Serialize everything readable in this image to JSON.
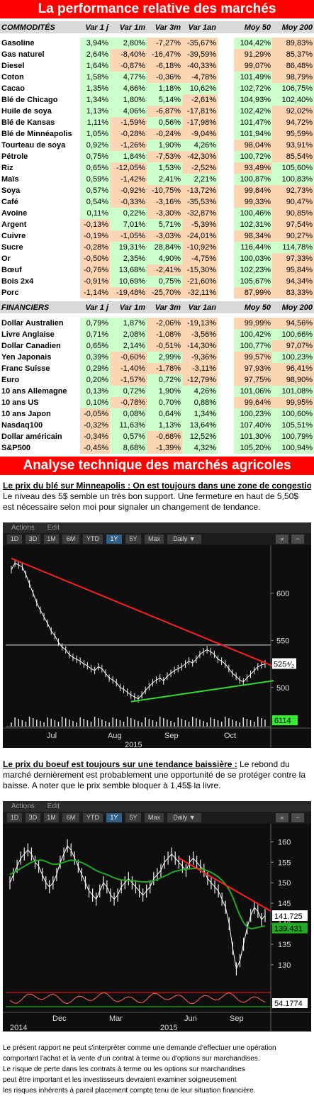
{
  "title": "La performance relative des marchés",
  "commodities": {
    "header": [
      "COMMODITÉS",
      "Var 1 j",
      "Var 1m",
      "Var 3m",
      "Var 1an",
      "Moy 50",
      "Moy 200"
    ],
    "rows": [
      [
        "Gasoline",
        "3,94%",
        "2,80%",
        "-7,27%",
        "-35,67%",
        "104,42%",
        "89,83%"
      ],
      [
        "Gas naturel",
        "2,64%",
        "-8,40%",
        "-16,47%",
        "-39,59%",
        "91,29%",
        "85,37%"
      ],
      [
        "Diesel",
        "1,64%",
        "-0,87%",
        "-6,18%",
        "-40,33%",
        "99,07%",
        "86,48%"
      ],
      [
        "Coton",
        "1,58%",
        "4,77%",
        "-0,36%",
        "-4,78%",
        "101,49%",
        "98,79%"
      ],
      [
        "Cacao",
        "1,35%",
        "4,66%",
        "1,18%",
        "10,62%",
        "102,72%",
        "106,75%"
      ],
      [
        "Blé de Chicago",
        "1,34%",
        "1,80%",
        "5,14%",
        "-2,61%",
        "104,93%",
        "102,40%"
      ],
      [
        "Huile de soya",
        "1,13%",
        "4,06%",
        "-6,87%",
        "-17,81%",
        "102,42%",
        "92,02%"
      ],
      [
        "Blé de Kansas",
        "1,11%",
        "-1,59%",
        "0,56%",
        "-17,98%",
        "101,47%",
        "94,72%"
      ],
      [
        "Blé de Minnéapolis",
        "1,05%",
        "-0,28%",
        "-0,24%",
        "-9,04%",
        "101,94%",
        "95,59%"
      ],
      [
        "Tourteau de soya",
        "0,92%",
        "-1,26%",
        "1,90%",
        "4,26%",
        "98,04%",
        "93,91%"
      ],
      [
        "Pétrole",
        "0,75%",
        "1,84%",
        "-7,53%",
        "-42,30%",
        "100,72%",
        "85,54%"
      ],
      [
        "Riz",
        "0,65%",
        "-12,05%",
        "1,53%",
        "-2,52%",
        "93,49%",
        "105,60%"
      ],
      [
        "Maïs",
        "0,59%",
        "-1,42%",
        "2,41%",
        "2,21%",
        "100,87%",
        "100,83%"
      ],
      [
        "Soya",
        "0,57%",
        "-0,92%",
        "-10,75%",
        "-13,72%",
        "99,84%",
        "92,73%"
      ],
      [
        "Café",
        "0,54%",
        "-0,33%",
        "-3,16%",
        "-35,53%",
        "99,33%",
        "90,47%"
      ],
      [
        "Avoine",
        "0,11%",
        "0,22%",
        "-3,30%",
        "-32,87%",
        "100,46%",
        "90,85%"
      ],
      [
        "Argent",
        "-0,13%",
        "7,01%",
        "5,71%",
        "-5,39%",
        "102,31%",
        "97,54%"
      ],
      [
        "Cuivre",
        "-0,19%",
        "-1,05%",
        "-3,03%",
        "-24,01%",
        "98,34%",
        "90,27%"
      ],
      [
        "Sucre",
        "-0,28%",
        "19,31%",
        "28,84%",
        "-10,92%",
        "116,44%",
        "114,78%"
      ],
      [
        "Or",
        "-0,50%",
        "2,35%",
        "4,90%",
        "-4,75%",
        "100,03%",
        "97,33%"
      ],
      [
        "Bœuf",
        "-0,76%",
        "13,68%",
        "-2,41%",
        "-15,30%",
        "102,23%",
        "95,84%"
      ],
      [
        "Bois 2x4",
        "-0,91%",
        "10,69%",
        "0,75%",
        "-21,60%",
        "105,67%",
        "94,34%"
      ],
      [
        "Porc",
        "-1,14%",
        "-19,48%",
        "-25,70%",
        "-32,11%",
        "87,99%",
        "83,33%"
      ]
    ]
  },
  "financials": {
    "header": [
      "FINANCIERS",
      "Var 1 j",
      "Var 1m",
      "Var 3m",
      "Var 1an",
      "Moy 50",
      "Moy 200"
    ],
    "rows": [
      [
        "Dollar Australien",
        "0,79%",
        "1,87%",
        "-2,06%",
        "-19,13%",
        "99,99%",
        "94,56%"
      ],
      [
        "Livre Anglaise",
        "0,71%",
        "2,08%",
        "-1,08%",
        "-3,56%",
        "100,42%",
        "100,66%"
      ],
      [
        "Dollar Canadien",
        "0,65%",
        "2,14%",
        "-0,51%",
        "-14,30%",
        "100,77%",
        "97,07%"
      ],
      [
        "Yen Japonais",
        "0,39%",
        "-0,60%",
        "2,99%",
        "-9,36%",
        "99,57%",
        "100,23%"
      ],
      [
        "Franc Suisse",
        "0,29%",
        "-1,40%",
        "-1,78%",
        "-3,11%",
        "97,93%",
        "96,41%"
      ],
      [
        "Euro",
        "0,20%",
        "-1,57%",
        "0,72%",
        "-12,79%",
        "97,75%",
        "98,90%"
      ],
      [
        "10 ans Allemagne",
        "0,13%",
        "0,72%",
        "1,90%",
        "4,26%",
        "101,06%",
        "101,08%"
      ],
      [
        "10 ans US",
        "0,10%",
        "-0,78%",
        "0,70%",
        "0,88%",
        "99,64%",
        "99,95%"
      ],
      [
        "10 ans Japon",
        "-0,05%",
        "0,08%",
        "0,64%",
        "1,34%",
        "100,23%",
        "100,60%"
      ],
      [
        "Nasdaq100",
        "-0,32%",
        "11,63%",
        "1,13%",
        "13,64%",
        "107,40%",
        "105,51%"
      ],
      [
        "Dollar américain",
        "-0,34%",
        "0,57%",
        "-0,68%",
        "12,52%",
        "101,30%",
        "100,79%"
      ],
      [
        "S&P500",
        "-0,45%",
        "8,68%",
        "-1,39%",
        "4,32%",
        "105,20%",
        "100,94%"
      ]
    ]
  },
  "analysis_title": "Analyse technique des marchés agricoles",
  "wheat": {
    "title": "Le prix du blé sur Minneapolis : On est toujours dans une zone de congestion",
    "text": "Le niveau des 5$ semble un très bon support. Une fermeture en haut de 5,50$ est nécessaire selon moi pour signaler un changement de tendance."
  },
  "beef": {
    "title": "Le prix du boeuf est toujours sur une tendance baissière :",
    "text": " Le rebond du marché dernièrement est probablement une opportunité de se protéger contre la baisse. A noter que le prix semble bloquer à 1,45$ la livre."
  },
  "terminal": {
    "menu": [
      "Actions",
      "Edit"
    ],
    "buttons": [
      "1D",
      "3D",
      "1M",
      "6M",
      "YTD",
      "1Y",
      "5Y",
      "Max",
      "Daily ▼"
    ],
    "back": "«",
    "close": "−"
  },
  "chart_data": [
    {
      "type": "line",
      "subject": "wheat",
      "x_ticks": [
        "Jul",
        "Aug",
        "Sep",
        "Oct"
      ],
      "year": "2015",
      "y_ticks": [
        500,
        550,
        600
      ],
      "ylim": [
        478,
        645
      ],
      "last_price": "525⁴⁄₂",
      "volume_label": "6114",
      "series_values": [
        625,
        632,
        630,
        628,
        620,
        610,
        600,
        590,
        582,
        575,
        568,
        560,
        555,
        548,
        543,
        540,
        535,
        532,
        530,
        528,
        525,
        523,
        520,
        518,
        522,
        520,
        515,
        510,
        508,
        505,
        500,
        498,
        495,
        492,
        490,
        488,
        492,
        497,
        501,
        505,
        508,
        510,
        507,
        512,
        515,
        518,
        520,
        522,
        525,
        528,
        526,
        530,
        535,
        538,
        540,
        538,
        535,
        530,
        528,
        525,
        520,
        515,
        512,
        508,
        506,
        510,
        514,
        518,
        522,
        524,
        525
      ],
      "resistance_line": [
        [
          0,
          637
        ],
        [
          70,
          521
        ]
      ],
      "support_line": [
        [
          33,
          485
        ],
        [
          70,
          508
        ]
      ],
      "resistance_level": 545
    },
    {
      "type": "line",
      "subject": "beef",
      "x_ticks": [
        "Dec",
        "Mar",
        "Jun",
        "Sep"
      ],
      "years": [
        "2014",
        "2015"
      ],
      "y_ticks": [
        130,
        135,
        140,
        145,
        150,
        155,
        160
      ],
      "ylim": [
        126,
        163
      ],
      "last_price": "141.725",
      "ma_value": "139.431",
      "osc_label": "54.1774",
      "series_values": [
        150,
        152,
        154,
        156,
        157,
        158,
        157,
        155,
        154,
        152,
        150,
        149,
        150,
        152,
        155,
        157,
        159,
        158,
        156,
        154,
        152,
        150,
        148,
        147,
        146,
        148,
        150,
        149,
        147,
        146,
        147,
        149,
        150,
        151,
        150,
        149,
        148,
        147,
        148,
        149,
        151,
        152,
        153,
        155,
        156,
        157,
        156,
        155,
        154,
        153,
        155,
        156,
        155,
        154,
        153,
        151,
        150,
        149,
        148,
        146,
        144,
        140,
        134,
        129,
        131,
        135,
        139,
        142,
        144,
        143,
        141,
        142
      ],
      "ma_values": [
        152,
        152.5,
        153,
        153.5,
        154,
        154.5,
        155,
        155.3,
        155.5,
        155.5,
        155.2,
        154.8,
        154.5,
        154.5,
        154.7,
        155,
        155.3,
        155.5,
        155.4,
        155.2,
        154.9,
        154.5,
        154,
        153.5,
        153,
        152.6,
        152.3,
        152,
        151.6,
        151.2,
        150.9,
        150.7,
        150.6,
        150.6,
        150.5,
        150.4,
        150.3,
        150.2,
        150.2,
        150.3,
        150.5,
        150.8,
        151.2,
        151.6,
        152,
        152.5,
        152.8,
        153,
        153.2,
        153.3,
        153.4,
        153.5,
        153.5,
        153.4,
        153.2,
        152.9,
        152.5,
        152,
        151.4,
        150.6,
        149.6,
        148.3,
        146.5,
        144.2,
        142,
        140.3,
        139.2,
        138.8,
        138.9,
        139.1,
        139.3,
        139.431
      ],
      "resistance_line": [
        [
          47,
          156
        ],
        [
          71,
          143
        ]
      ]
    }
  ],
  "disclaimer": [
    "Le présent rapport ne peut s'interpréter comme une demande d'effectuer une opération",
    "comportant l'achat et la vente d'un contrat à terme ou d'options sur marchandises.",
    "Le risque de perte dans les contrats à terme ou les options sur marchandises",
    "peut être important et les investisseurs devraient examiner soigneusement",
    "les risques inhérents à pareil placement compte tenu de leur situation financière."
  ],
  "colors": {
    "banner": "#ff0000",
    "positive": "#ccffcc",
    "negative": "#fcd5b4",
    "header": "#d9d9d9",
    "resistance": "#ff2020",
    "support": "#33dd33"
  }
}
